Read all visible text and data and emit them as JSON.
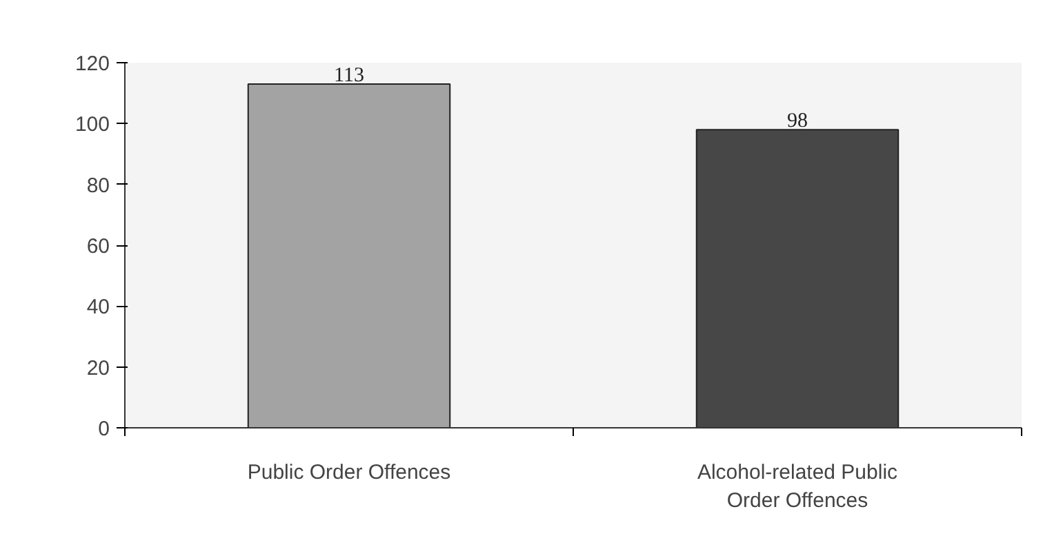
{
  "chart_data": {
    "type": "bar",
    "categories": [
      "Public Order Offences",
      "Alcohol-related Public Order Offences"
    ],
    "values": [
      113,
      98
    ],
    "colors": [
      "#a3a3a3",
      "#474747"
    ],
    "ylim": [
      0,
      120
    ],
    "yticks": [
      0,
      20,
      40,
      60,
      80,
      100,
      120
    ],
    "grid": false,
    "data_labels": true
  }
}
